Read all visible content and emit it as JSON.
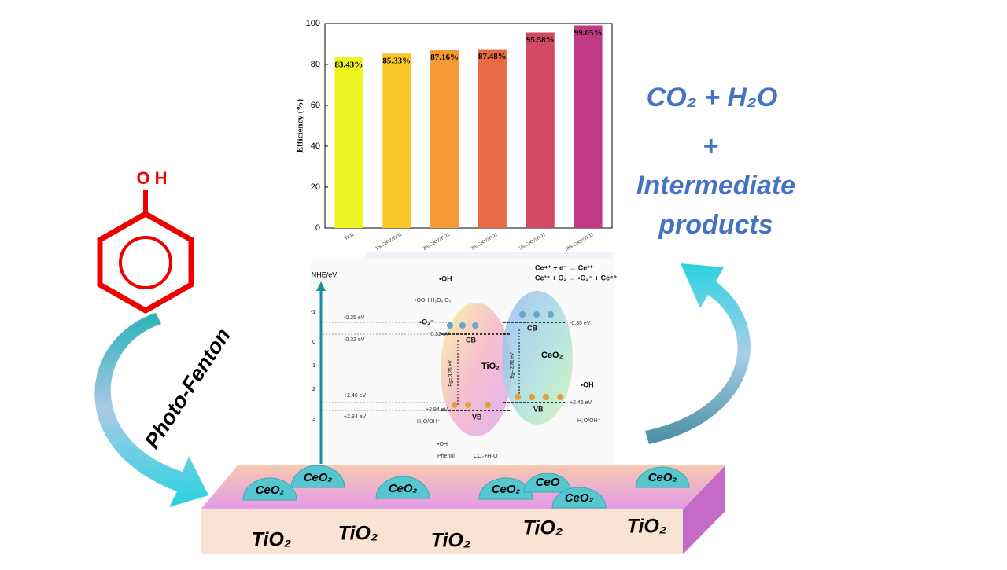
{
  "chart_data": {
    "type": "bar",
    "ylabel": "Efficiency (%)",
    "categories": [
      "TiO2",
      "1% CeO2/TiO2",
      "2% CeO2/TiO2",
      "3% CeO2/TiO2",
      "5% CeO2/TiO2",
      "10% CeO2/TiO2"
    ],
    "values": [
      83.43,
      85.33,
      87.16,
      87.48,
      95.58,
      99.05
    ],
    "value_labels": [
      "83.43%",
      "85.33%",
      "87.16%",
      "87.48%",
      "95.58%",
      "99.05%"
    ],
    "colors": [
      "#eef522",
      "#f9c628",
      "#f59a35",
      "#e86b45",
      "#d24a62",
      "#c23a86"
    ],
    "ylim": [
      0,
      100
    ],
    "yticks": [
      0,
      20,
      40,
      60,
      80,
      100
    ]
  },
  "phenol": {
    "label": "OH"
  },
  "process_label": "Photo-Fenton",
  "products": [
    "CO₂ + H₂O",
    "+",
    "Intermediate",
    "products"
  ],
  "catalyst": {
    "support_labels": [
      "TiO₂",
      "TiO₂",
      "TiO₂",
      "TiO₂",
      "TiO₂"
    ],
    "particle_labels": [
      "CeO₂",
      "CeO₂",
      "CeO₂",
      "CeO₂",
      "CeO",
      "CeO₂",
      "CeO₂"
    ]
  },
  "energy_diagram": {
    "axis_label": "NHE/eV",
    "axis_ticks": [
      -1,
      0,
      1,
      2,
      3
    ],
    "level_labels": [
      "-0.35 eV",
      "-0.32 eV",
      "+2.46 eV",
      "+2.94 eV"
    ],
    "reactions": [
      "Ce⁴⁺ + e⁻ → Ce³⁺",
      "Ce³⁺ + O₂ → •O₂⁻ + Ce⁴⁺"
    ],
    "tio2": {
      "name": "TiO₂",
      "cb": "CB",
      "vb": "VB",
      "gap": "Eg= 3.26 eV",
      "cb_level": "-0.32 eV",
      "vb_level": "+2.94 eV"
    },
    "ceo2": {
      "name": "CeO₂",
      "cb": "CB",
      "vb": "VB",
      "gap": "Eg= 2.81 eV",
      "cb_level": "-0.35 eV",
      "vb_level": "+2.46 eV"
    },
    "species": {
      "oh_top": "•OH",
      "oxidants": "•OOH  H₂O₂  O₂",
      "superoxide": "•O₂⁻",
      "oh_right": "•OH",
      "h2o_right": "H₂O/OH⁻",
      "h2o_left": "H₂O/OH⁻",
      "oh_bottom": "•OH",
      "phenol": "Phenol",
      "products": "CO₂+H₂O"
    }
  }
}
